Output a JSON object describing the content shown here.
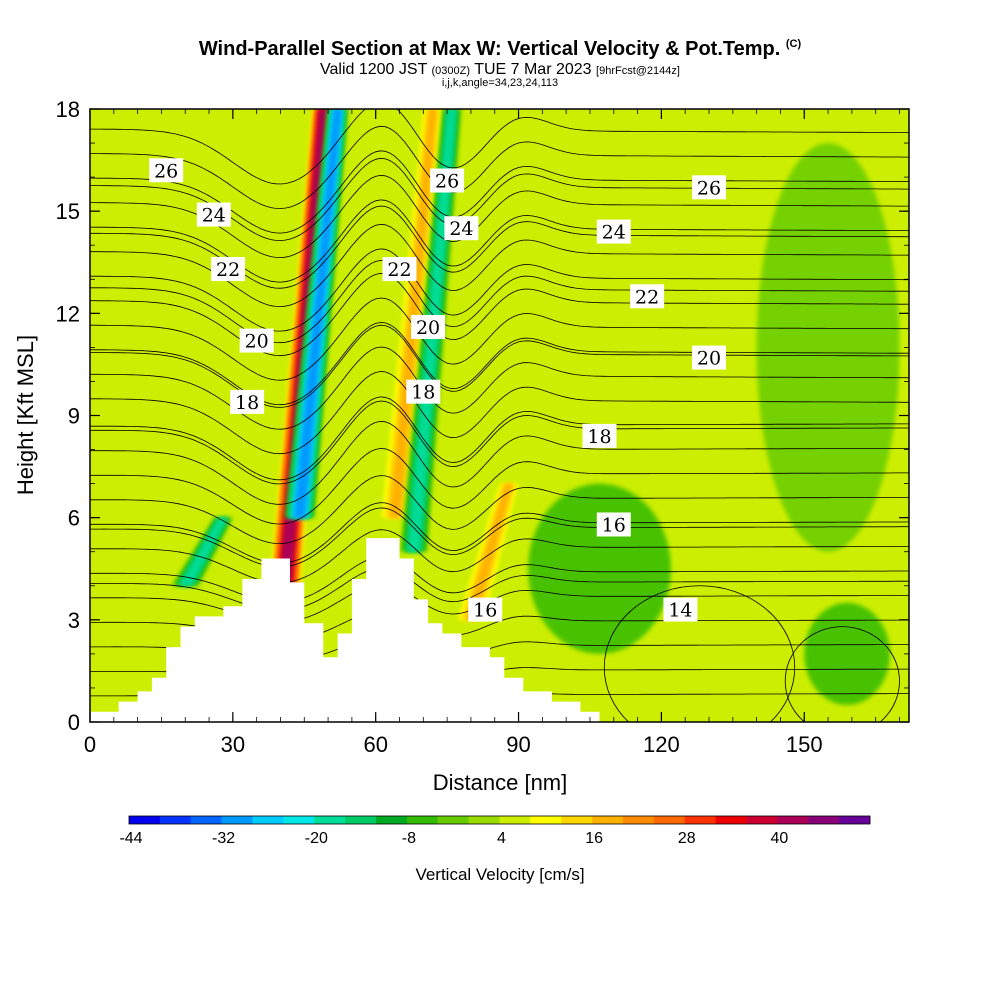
{
  "header": {
    "title": "Wind-Parallel Section at Max W: Vertical Velocity & Pot.Temp.",
    "copyright": "(C)",
    "sub_a": "Valid 1200 JST",
    "sub_b": "(0300Z)",
    "sub_c": "TUE 7 Mar 2023",
    "sub_d": "[9hrFcst@2144z]",
    "indices": "i,j,k,angle=34,23,24,113"
  },
  "chart_data": {
    "type": "heatmap",
    "title": "Wind-Parallel Section at Max W: Vertical Velocity & Pot.Temp.",
    "xlabel": "Distance [nm]",
    "ylabel": "Height [Kft MSL]",
    "xlim": [
      0,
      172
    ],
    "ylim": [
      0,
      18
    ],
    "x_ticks": [
      "0",
      "30",
      "60",
      "90",
      "120",
      "150"
    ],
    "y_ticks": [
      "0",
      "3",
      "6",
      "9",
      "12",
      "15",
      "18"
    ],
    "colorbar": {
      "label": "Vertical Velocity [cm/s]",
      "ticks": [
        "-44",
        "-32",
        "-20",
        "-8",
        "4",
        "16",
        "28",
        "40"
      ],
      "colors": [
        "#0000ee",
        "#0033ff",
        "#0066ff",
        "#0099ff",
        "#00ccff",
        "#00e8e8",
        "#00dd99",
        "#00cc66",
        "#00aa22",
        "#33bb00",
        "#66cc00",
        "#99dd00",
        "#ccee00",
        "#ffff00",
        "#ffd700",
        "#ffb000",
        "#ff8c00",
        "#ff6a00",
        "#ff3300",
        "#ee0000",
        "#cc0033",
        "#aa0055",
        "#880077",
        "#660099"
      ]
    },
    "vertical_velocity_features": [
      {
        "type": "updraft",
        "x": 45,
        "y_bottom": 4,
        "y_top": 18,
        "max": 40
      },
      {
        "type": "downdraft",
        "x": 48,
        "y_bottom": 6,
        "y_top": 18,
        "min": -32
      },
      {
        "type": "updraft",
        "x": 68,
        "y_bottom": 6,
        "y_top": 18,
        "max": 16
      },
      {
        "type": "downdraft",
        "x": 72,
        "y_bottom": 5,
        "y_top": 18,
        "min": -20
      },
      {
        "type": "updraft",
        "x": 84,
        "y_bottom": 3,
        "y_top": 7,
        "max": 16
      },
      {
        "type": "downdraft",
        "x": 24,
        "y_bottom": 4,
        "y_top": 6,
        "min": -20
      }
    ],
    "potential_temperature_contours": [
      {
        "value": "14",
        "level_ft": 4.1,
        "label_x": 124,
        "label_y": 3.3
      },
      {
        "value": "16",
        "level_ft": 5.7,
        "label_x": 110,
        "label_y": 5.8
      },
      {
        "value": "18",
        "level_ft": 8.6,
        "label_x": 107,
        "label_y": 8.4
      },
      {
        "value": "20",
        "level_ft": 10.8,
        "label_x": 130,
        "label_y": 10.7
      },
      {
        "value": "22",
        "level_ft": 12.7,
        "label_x": 117,
        "label_y": 12.5
      },
      {
        "value": "24",
        "level_ft": 14.3,
        "label_x": 110,
        "label_y": 14.4
      },
      {
        "value": "26",
        "level_ft": 15.7,
        "label_x": 130,
        "label_y": 15.7
      }
    ],
    "contour_labels": [
      {
        "text": "26",
        "x": 16,
        "y": 16.2
      },
      {
        "text": "24",
        "x": 26,
        "y": 14.9
      },
      {
        "text": "22",
        "x": 29,
        "y": 13.3
      },
      {
        "text": "20",
        "x": 35,
        "y": 11.2
      },
      {
        "text": "18",
        "x": 33,
        "y": 9.4
      },
      {
        "text": "26",
        "x": 75,
        "y": 15.9
      },
      {
        "text": "24",
        "x": 78,
        "y": 14.5
      },
      {
        "text": "22",
        "x": 65,
        "y": 13.3
      },
      {
        "text": "20",
        "x": 71,
        "y": 11.6
      },
      {
        "text": "18",
        "x": 70,
        "y": 9.7
      },
      {
        "text": "16",
        "x": 83,
        "y": 3.3
      },
      {
        "text": "26",
        "x": 130,
        "y": 15.7
      },
      {
        "text": "24",
        "x": 110,
        "y": 14.4
      },
      {
        "text": "22",
        "x": 117,
        "y": 12.5
      },
      {
        "text": "20",
        "x": 130,
        "y": 10.7
      },
      {
        "text": "18",
        "x": 107,
        "y": 8.4
      },
      {
        "text": "16",
        "x": 110,
        "y": 5.8
      },
      {
        "text": "14",
        "x": 124,
        "y": 3.3
      }
    ],
    "terrain_profile": [
      {
        "x": 0,
        "h": 0.3
      },
      {
        "x": 6,
        "h": 0.3
      },
      {
        "x": 6,
        "h": 0.6
      },
      {
        "x": 10,
        "h": 0.6
      },
      {
        "x": 10,
        "h": 0.9
      },
      {
        "x": 13,
        "h": 0.9
      },
      {
        "x": 13,
        "h": 1.3
      },
      {
        "x": 16,
        "h": 1.3
      },
      {
        "x": 16,
        "h": 2.2
      },
      {
        "x": 19,
        "h": 2.2
      },
      {
        "x": 19,
        "h": 2.8
      },
      {
        "x": 22,
        "h": 2.8
      },
      {
        "x": 22,
        "h": 3.1
      },
      {
        "x": 28,
        "h": 3.1
      },
      {
        "x": 28,
        "h": 3.4
      },
      {
        "x": 32,
        "h": 3.4
      },
      {
        "x": 32,
        "h": 4.2
      },
      {
        "x": 36,
        "h": 4.2
      },
      {
        "x": 36,
        "h": 4.8
      },
      {
        "x": 42,
        "h": 4.8
      },
      {
        "x": 42,
        "h": 4.1
      },
      {
        "x": 45,
        "h": 4.1
      },
      {
        "x": 45,
        "h": 2.9
      },
      {
        "x": 49,
        "h": 2.9
      },
      {
        "x": 49,
        "h": 1.9
      },
      {
        "x": 52,
        "h": 1.9
      },
      {
        "x": 52,
        "h": 2.6
      },
      {
        "x": 55,
        "h": 2.6
      },
      {
        "x": 55,
        "h": 4.2
      },
      {
        "x": 58,
        "h": 4.2
      },
      {
        "x": 58,
        "h": 5.4
      },
      {
        "x": 65,
        "h": 5.4
      },
      {
        "x": 65,
        "h": 4.8
      },
      {
        "x": 68,
        "h": 4.8
      },
      {
        "x": 68,
        "h": 3.6
      },
      {
        "x": 71,
        "h": 3.6
      },
      {
        "x": 71,
        "h": 2.9
      },
      {
        "x": 74,
        "h": 2.9
      },
      {
        "x": 74,
        "h": 2.6
      },
      {
        "x": 78,
        "h": 2.6
      },
      {
        "x": 78,
        "h": 2.2
      },
      {
        "x": 84,
        "h": 2.2
      },
      {
        "x": 84,
        "h": 1.9
      },
      {
        "x": 87,
        "h": 1.9
      },
      {
        "x": 87,
        "h": 1.3
      },
      {
        "x": 91,
        "h": 1.3
      },
      {
        "x": 91,
        "h": 0.9
      },
      {
        "x": 97,
        "h": 0.9
      },
      {
        "x": 97,
        "h": 0.6
      },
      {
        "x": 103,
        "h": 0.6
      },
      {
        "x": 103,
        "h": 0.3
      },
      {
        "x": 107,
        "h": 0.3
      },
      {
        "x": 107,
        "h": 0.0
      },
      {
        "x": 110,
        "h": 0.0
      }
    ]
  }
}
